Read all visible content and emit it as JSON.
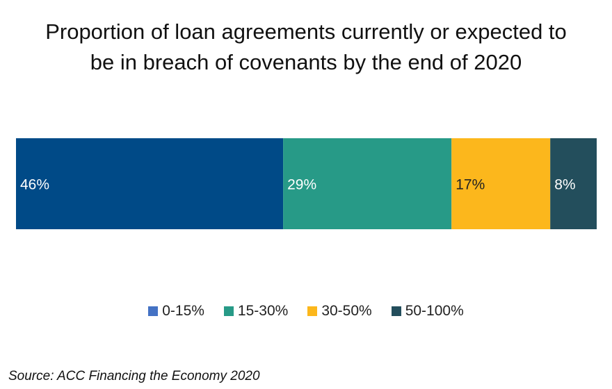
{
  "chart_data": {
    "type": "bar",
    "orientation": "horizontal-stacked-100",
    "title_lines": [
      "Proportion of loan agreements currently or expected to",
      "be in breach of covenants by the end of 2020"
    ],
    "series": [
      {
        "name": "0-15%",
        "value": 46,
        "label": "46%",
        "color": "#004a87",
        "legend_color": "#4472c4",
        "label_color": "#ffffff"
      },
      {
        "name": "15-30%",
        "value": 29,
        "label": "29%",
        "color": "#279a87",
        "legend_color": "#279a87",
        "label_color": "#ffffff"
      },
      {
        "name": "30-50%",
        "value": 17,
        "label": "17%",
        "color": "#fcb71c",
        "legend_color": "#fcb71c",
        "label_color": "#222222"
      },
      {
        "name": "50-100%",
        "value": 8,
        "label": "8%",
        "color": "#234e5c",
        "legend_color": "#234e5c",
        "label_color": "#ffffff"
      }
    ],
    "legend_position": "bottom",
    "grid": false
  },
  "source": "Source: ACC Financing the Economy 2020"
}
